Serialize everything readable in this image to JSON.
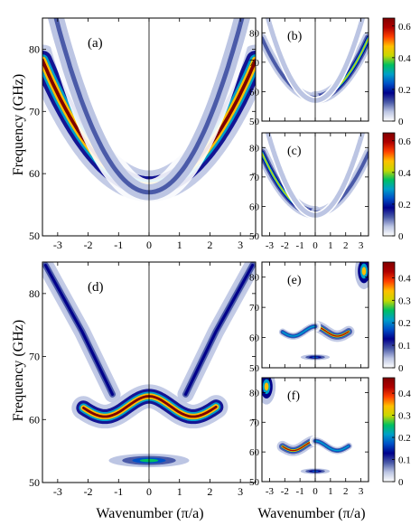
{
  "figure": {
    "ylabel_top": "Frequency (GHz)",
    "ylabel_bottom": "Frequency (GHz)",
    "xlabel_left": "Wavenumber (π/a)",
    "xlabel_right": "Wavenumber (π/a)"
  },
  "colormap": [
    "#ffffff",
    "#bcc5e3",
    "#4a5aa8",
    "#00008b",
    "#0050c8",
    "#00a0c8",
    "#00c060",
    "#c8d800",
    "#ffc000",
    "#ff4000",
    "#b00000",
    "#800000"
  ],
  "chart_data": [
    {
      "type": "heatmap",
      "label": "(a)",
      "xlim": [
        -3.5,
        3.5
      ],
      "ylim": [
        50,
        85
      ],
      "xticks": [
        "-3",
        "-2",
        "-1",
        "0",
        "1",
        "2",
        "3"
      ],
      "yticks": [
        "50",
        "60",
        "70",
        "80"
      ],
      "vertical_line_x": 0,
      "bands": [
        {
          "name": "band-main",
          "f0": 58,
          "c": 1.65,
          "p": 2,
          "intensity": 1.0,
          "width": 1.2
        },
        {
          "name": "band-outer",
          "f0": 57,
          "c": 3.0,
          "p": 2,
          "intensity": 0.18,
          "width": 1.6
        }
      ]
    },
    {
      "type": "heatmap",
      "label": "(b)",
      "xlim": [
        -3.5,
        3.5
      ],
      "ylim": [
        50,
        85
      ],
      "yticks": [
        "50",
        "60",
        "70",
        "80"
      ],
      "vertical_line_x": 0,
      "colorbar": {
        "range": [
          0,
          0.65
        ],
        "ticks": [
          "0",
          "0.2",
          "0.4",
          "0.6"
        ]
      },
      "bands": [
        {
          "name": "band-main-right",
          "f0": 58,
          "c": 1.65,
          "p": 2,
          "intensity": 0.6,
          "width": 1.0,
          "side": "right"
        },
        {
          "name": "band-main-left",
          "f0": 58,
          "c": 1.65,
          "p": 2,
          "intensity": 0.2,
          "width": 1.2,
          "side": "left"
        },
        {
          "name": "band-outer",
          "f0": 57,
          "c": 2.9,
          "p": 2,
          "intensity": 0.08,
          "width": 1.6
        }
      ]
    },
    {
      "type": "heatmap",
      "label": "(c)",
      "xlim": [
        -3.5,
        3.5
      ],
      "ylim": [
        50,
        85
      ],
      "xticks": [
        "-3",
        "-2",
        "-1",
        "0",
        "1",
        "2",
        "3"
      ],
      "yticks": [
        "50",
        "60",
        "70",
        "80"
      ],
      "vertical_line_x": 0,
      "colorbar": {
        "range": [
          0,
          0.65
        ],
        "ticks": [
          "0",
          "0.2",
          "0.4",
          "0.6"
        ]
      },
      "bands": [
        {
          "name": "band-main-left",
          "f0": 58,
          "c": 1.65,
          "p": 2,
          "intensity": 0.6,
          "width": 1.0,
          "side": "left"
        },
        {
          "name": "band-main-right",
          "f0": 58,
          "c": 1.65,
          "p": 2,
          "intensity": 0.2,
          "width": 1.2,
          "side": "right"
        },
        {
          "name": "band-outer",
          "f0": 57,
          "c": 2.9,
          "p": 2,
          "intensity": 0.08,
          "width": 1.6
        }
      ]
    },
    {
      "type": "heatmap",
      "label": "(d)",
      "xlim": [
        -3.5,
        3.5
      ],
      "ylim": [
        50,
        85
      ],
      "xticks": [
        "-3",
        "-2",
        "-1",
        "0",
        "1",
        "2",
        "3"
      ],
      "yticks": [
        "50",
        "60",
        "70",
        "80"
      ],
      "vertical_line_x": 0,
      "bands": [
        {
          "name": "wavy-band",
          "kind": "wave",
          "f0": 62.0,
          "amp": 1.7,
          "k0": 2.2,
          "intensity": 1.0,
          "width": 0.9
        },
        {
          "name": "low-band",
          "kind": "blob",
          "x": 0,
          "f": 53.5,
          "sx": 0.55,
          "sf": 0.45,
          "intensity": 0.55
        },
        {
          "name": "ghost-branches",
          "kind": "lines",
          "intensity": 0.25,
          "width": 1.0,
          "points": [
            [
              -3.4,
              84.5
            ],
            [
              -2.2,
              74
            ],
            [
              -1.2,
              64
            ],
            [
              1.2,
              64
            ],
            [
              2.2,
              74
            ],
            [
              3.4,
              84.5
            ]
          ]
        }
      ]
    },
    {
      "type": "heatmap",
      "label": "(e)",
      "xlim": [
        -3.5,
        3.5
      ],
      "ylim": [
        50,
        85
      ],
      "yticks": [
        "50",
        "60",
        "70",
        "80"
      ],
      "vertical_line_x": 0,
      "colorbar": {
        "range": [
          0,
          0.47
        ],
        "ticks": [
          "0",
          "0.1",
          "0.2",
          "0.3",
          "0.4"
        ]
      },
      "bands": [
        {
          "name": "wavy-band-right",
          "kind": "wave",
          "f0": 62.0,
          "amp": 1.7,
          "k0": 2.2,
          "intensity": 0.9,
          "width": 0.9,
          "side": "right"
        },
        {
          "name": "wavy-band-left",
          "kind": "wave",
          "f0": 62.0,
          "amp": 1.7,
          "k0": 2.2,
          "intensity": 0.45,
          "width": 0.9,
          "side": "left"
        },
        {
          "name": "low-band",
          "kind": "blob",
          "x": 0,
          "f": 53.5,
          "sx": 0.4,
          "sf": 0.4,
          "intensity": 0.4
        },
        {
          "name": "top-right-band",
          "kind": "blob",
          "x": 3.2,
          "f": 82,
          "sx": 0.25,
          "sf": 2.5,
          "intensity": 0.7
        }
      ]
    },
    {
      "type": "heatmap",
      "label": "(f)",
      "xlim": [
        -3.5,
        3.5
      ],
      "ylim": [
        50,
        85
      ],
      "xticks": [
        "-3",
        "-2",
        "-1",
        "0",
        "1",
        "2",
        "3"
      ],
      "yticks": [
        "50",
        "60",
        "70",
        "80"
      ],
      "vertical_line_x": 0,
      "colorbar": {
        "range": [
          0,
          0.47
        ],
        "ticks": [
          "0",
          "0.1",
          "0.2",
          "0.3",
          "0.4"
        ]
      },
      "bands": [
        {
          "name": "wavy-band-left",
          "kind": "wave",
          "f0": 62.0,
          "amp": 1.7,
          "k0": 2.2,
          "intensity": 0.9,
          "width": 0.9,
          "side": "left"
        },
        {
          "name": "wavy-band-right",
          "kind": "wave",
          "f0": 62.0,
          "amp": 1.7,
          "k0": 2.2,
          "intensity": 0.45,
          "width": 0.9,
          "side": "right"
        },
        {
          "name": "low-band",
          "kind": "blob",
          "x": 0,
          "f": 53.5,
          "sx": 0.4,
          "sf": 0.4,
          "intensity": 0.4
        },
        {
          "name": "top-left-band",
          "kind": "blob",
          "x": -3.2,
          "f": 82,
          "sx": 0.25,
          "sf": 2.5,
          "intensity": 0.7
        }
      ]
    }
  ]
}
